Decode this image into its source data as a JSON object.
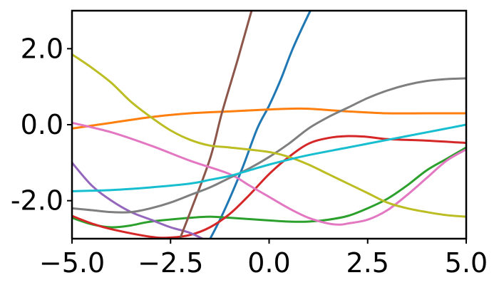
{
  "chart_data": {
    "type": "line",
    "title": "",
    "xlabel": "",
    "ylabel": "",
    "xlim": [
      -5.0,
      5.0
    ],
    "ylim": [
      -3.0,
      3.0
    ],
    "x_ticks": [
      -5.0,
      -2.5,
      0.0,
      2.5,
      5.0
    ],
    "x_tick_labels": [
      "−5.0",
      "−2.5",
      "0.0",
      "2.5",
      "5.0"
    ],
    "y_ticks": [
      2.0,
      0.0,
      -2.0
    ],
    "y_tick_labels": [
      "2.0",
      "0.0",
      "-2.0"
    ],
    "grid": false,
    "legend": "none",
    "series": [
      {
        "color": "#1f77b4",
        "points": [
          [
            -1.7,
            -3.4
          ],
          [
            -1.2,
            -2.4
          ],
          [
            -0.7,
            -1.2
          ],
          [
            -0.3,
            -0.1
          ],
          [
            0.0,
            0.5
          ],
          [
            0.3,
            1.2
          ],
          [
            0.6,
            2.0
          ],
          [
            1.0,
            2.9
          ],
          [
            1.3,
            3.5
          ]
        ]
      },
      {
        "color": "#ff7f0e",
        "points": [
          [
            -5.0,
            -0.1
          ],
          [
            -4.0,
            0.05
          ],
          [
            -3.0,
            0.2
          ],
          [
            -2.0,
            0.3
          ],
          [
            -1.0,
            0.35
          ],
          [
            0.0,
            0.4
          ],
          [
            0.5,
            0.42
          ],
          [
            1.0,
            0.42
          ],
          [
            2.0,
            0.35
          ],
          [
            3.0,
            0.3
          ],
          [
            4.0,
            0.3
          ],
          [
            5.0,
            0.3
          ]
        ]
      },
      {
        "color": "#2ca02c",
        "points": [
          [
            -5.0,
            -2.45
          ],
          [
            -4.5,
            -2.62
          ],
          [
            -4.0,
            -2.7
          ],
          [
            -3.5,
            -2.65
          ],
          [
            -3.0,
            -2.55
          ],
          [
            -2.0,
            -2.45
          ],
          [
            -1.5,
            -2.42
          ],
          [
            -1.0,
            -2.45
          ],
          [
            0.0,
            -2.52
          ],
          [
            0.5,
            -2.55
          ],
          [
            1.0,
            -2.55
          ],
          [
            1.5,
            -2.5
          ],
          [
            2.0,
            -2.4
          ],
          [
            2.5,
            -2.2
          ],
          [
            3.0,
            -1.95
          ],
          [
            3.5,
            -1.6
          ],
          [
            4.0,
            -1.2
          ],
          [
            4.5,
            -0.9
          ],
          [
            5.0,
            -0.6
          ]
        ]
      },
      {
        "color": "#d62728",
        "points": [
          [
            -5.0,
            -2.4
          ],
          [
            -4.5,
            -2.6
          ],
          [
            -4.0,
            -2.75
          ],
          [
            -3.0,
            -2.95
          ],
          [
            -2.5,
            -2.97
          ],
          [
            -2.0,
            -2.9
          ],
          [
            -1.5,
            -2.7
          ],
          [
            -1.0,
            -2.35
          ],
          [
            -0.5,
            -1.85
          ],
          [
            0.0,
            -1.3
          ],
          [
            0.5,
            -0.85
          ],
          [
            1.0,
            -0.5
          ],
          [
            1.5,
            -0.35
          ],
          [
            2.0,
            -0.3
          ],
          [
            2.5,
            -0.32
          ],
          [
            3.0,
            -0.38
          ],
          [
            4.0,
            -0.42
          ],
          [
            5.0,
            -0.48
          ]
        ]
      },
      {
        "color": "#9467bd",
        "points": [
          [
            -5.0,
            -1.0
          ],
          [
            -4.5,
            -1.6
          ],
          [
            -4.0,
            -2.0
          ],
          [
            -3.5,
            -2.3
          ],
          [
            -3.0,
            -2.5
          ],
          [
            -2.5,
            -2.7
          ],
          [
            -2.0,
            -2.85
          ],
          [
            -1.5,
            -3.1
          ]
        ]
      },
      {
        "color": "#8c564b",
        "points": [
          [
            -2.3,
            -3.1
          ],
          [
            -2.0,
            -2.3
          ],
          [
            -1.5,
            -0.9
          ],
          [
            -1.2,
            0.3
          ],
          [
            -0.8,
            1.7
          ],
          [
            -0.5,
            2.8
          ],
          [
            -0.3,
            3.5
          ]
        ]
      },
      {
        "color": "#e377c2",
        "points": [
          [
            -5.0,
            0.05
          ],
          [
            -4.0,
            -0.2
          ],
          [
            -3.0,
            -0.55
          ],
          [
            -2.0,
            -0.95
          ],
          [
            -1.0,
            -1.3
          ],
          [
            -0.5,
            -1.6
          ],
          [
            0.0,
            -1.9
          ],
          [
            0.5,
            -2.2
          ],
          [
            1.0,
            -2.45
          ],
          [
            1.5,
            -2.6
          ],
          [
            1.8,
            -2.63
          ],
          [
            2.0,
            -2.6
          ],
          [
            2.5,
            -2.5
          ],
          [
            3.0,
            -2.25
          ],
          [
            3.5,
            -1.85
          ],
          [
            4.0,
            -1.4
          ],
          [
            4.5,
            -0.95
          ],
          [
            5.0,
            -0.65
          ]
        ]
      },
      {
        "color": "#7f7f7f",
        "points": [
          [
            -5.0,
            -2.2
          ],
          [
            -4.5,
            -2.25
          ],
          [
            -4.0,
            -2.3
          ],
          [
            -3.5,
            -2.3
          ],
          [
            -3.0,
            -2.2
          ],
          [
            -2.5,
            -2.05
          ],
          [
            -2.0,
            -1.85
          ],
          [
            -1.5,
            -1.65
          ],
          [
            -1.0,
            -1.4
          ],
          [
            -0.5,
            -1.15
          ],
          [
            0.0,
            -0.85
          ],
          [
            0.5,
            -0.5
          ],
          [
            1.0,
            -0.1
          ],
          [
            1.5,
            0.2
          ],
          [
            2.0,
            0.45
          ],
          [
            2.5,
            0.7
          ],
          [
            3.0,
            0.9
          ],
          [
            3.5,
            1.05
          ],
          [
            4.0,
            1.15
          ],
          [
            4.5,
            1.2
          ],
          [
            5.0,
            1.22
          ]
        ]
      },
      {
        "color": "#bcbd22",
        "points": [
          [
            -5.0,
            1.85
          ],
          [
            -4.5,
            1.5
          ],
          [
            -4.0,
            1.1
          ],
          [
            -3.5,
            0.6
          ],
          [
            -3.0,
            0.2
          ],
          [
            -2.5,
            -0.15
          ],
          [
            -2.0,
            -0.4
          ],
          [
            -1.5,
            -0.55
          ],
          [
            -1.0,
            -0.6
          ],
          [
            0.0,
            -0.72
          ],
          [
            0.5,
            -0.85
          ],
          [
            1.0,
            -1.05
          ],
          [
            1.5,
            -1.3
          ],
          [
            2.0,
            -1.55
          ],
          [
            2.5,
            -1.8
          ],
          [
            3.0,
            -2.05
          ],
          [
            3.5,
            -2.2
          ],
          [
            4.0,
            -2.3
          ],
          [
            4.5,
            -2.38
          ],
          [
            5.0,
            -2.42
          ]
        ]
      },
      {
        "color": "#17becf",
        "points": [
          [
            -5.0,
            -1.75
          ],
          [
            -4.0,
            -1.72
          ],
          [
            -3.0,
            -1.65
          ],
          [
            -2.0,
            -1.55
          ],
          [
            -1.5,
            -1.45
          ],
          [
            -1.0,
            -1.35
          ],
          [
            -0.5,
            -1.2
          ],
          [
            0.0,
            -1.05
          ],
          [
            0.5,
            -0.92
          ],
          [
            1.0,
            -0.8
          ],
          [
            2.0,
            -0.6
          ],
          [
            3.0,
            -0.4
          ],
          [
            4.0,
            -0.2
          ],
          [
            5.0,
            0.0
          ]
        ]
      }
    ]
  }
}
